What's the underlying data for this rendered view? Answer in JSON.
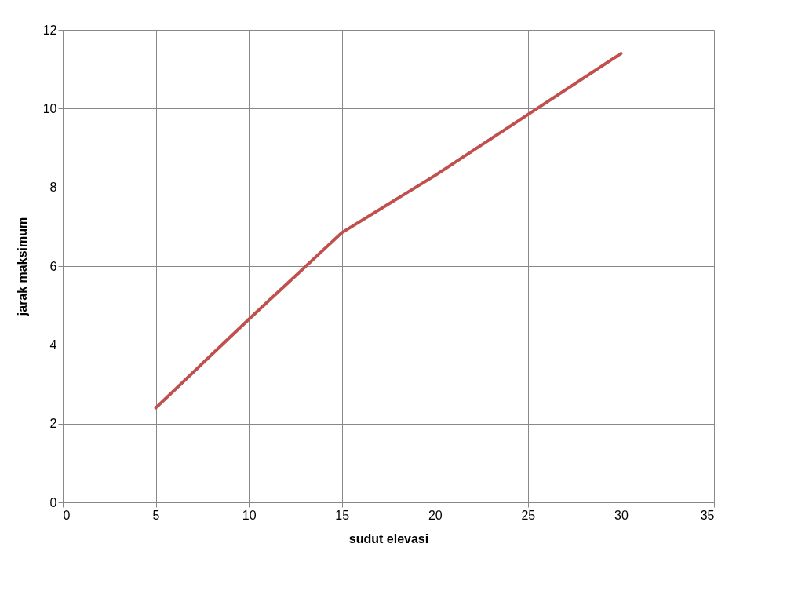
{
  "chart_data": {
    "type": "line",
    "xlabel": "sudut elevasi",
    "ylabel": "jarak maksimum",
    "x": [
      5,
      10,
      15,
      20,
      25,
      30
    ],
    "series": [
      {
        "color": "#c0504d",
        "values": [
          2.4,
          4.65,
          6.85,
          8.3,
          9.85,
          11.4
        ]
      }
    ],
    "xlim": [
      0,
      35
    ],
    "xticks": [
      0,
      5,
      10,
      15,
      20,
      25,
      30,
      35
    ],
    "ylim": [
      0,
      12
    ],
    "yticks": [
      0,
      2,
      4,
      6,
      8,
      10,
      12
    ],
    "grid": true,
    "marker": "none",
    "line_style": "solid"
  }
}
